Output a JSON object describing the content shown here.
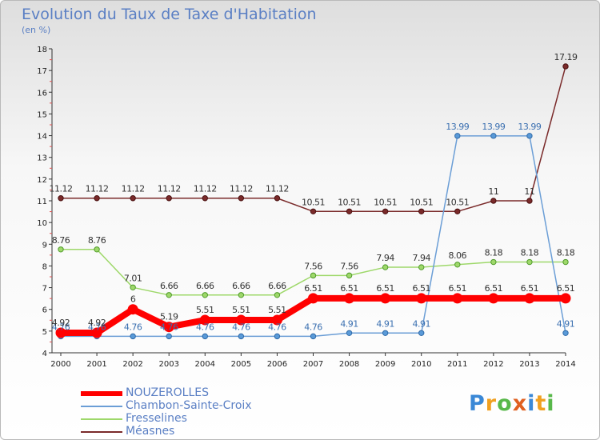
{
  "header": {
    "title": "Evolution du Taux de Taxe d'Habitation",
    "unit": "(en %)"
  },
  "brand": {
    "letters": [
      {
        "char": "P",
        "color": "#3a88d6"
      },
      {
        "char": "r",
        "color": "#f0a020"
      },
      {
        "char": "o",
        "color": "#58b84a"
      },
      {
        "char": "x",
        "color": "#e06020"
      },
      {
        "char": "i",
        "color": "#3a88d6"
      },
      {
        "char": "t",
        "color": "#f0a020"
      },
      {
        "char": "i",
        "color": "#58b84a"
      }
    ]
  },
  "chart_data": {
    "type": "line",
    "title": "Evolution du Taux de Taxe d'Habitation",
    "ylabel": "(en %)",
    "xlabel": "",
    "ylim": [
      4,
      18
    ],
    "yticks": [
      "4",
      "5",
      "6",
      "7",
      "8",
      "9",
      "10",
      "11",
      "12",
      "13",
      "14",
      "15",
      "16",
      "17",
      "18"
    ],
    "categories": [
      "2000",
      "2001",
      "2002",
      "2003",
      "2004",
      "2005",
      "2006",
      "2007",
      "2008",
      "2009",
      "2010",
      "2011",
      "2012",
      "2013",
      "2014"
    ],
    "grid": false,
    "legend_position": "bottom-left",
    "series": [
      {
        "name": "NOUZEROLLES",
        "color": "#ff0000",
        "values": [
          4.92,
          4.92,
          6,
          5.19,
          5.51,
          5.51,
          5.51,
          6.51,
          6.51,
          6.51,
          6.51,
          6.51,
          6.51,
          6.51,
          6.51
        ],
        "labels": [
          "4.92",
          "4.92",
          "6",
          "5.19",
          "5.51",
          "5.51",
          "5.51",
          "6.51",
          "6.51",
          "6.51",
          "6.51",
          "6.51",
          "6.51",
          "6.51",
          "6.51"
        ]
      },
      {
        "name": "Chambon-Sainte-Croix",
        "color": "#6b9ed6",
        "values": [
          4.76,
          4.76,
          4.76,
          4.76,
          4.76,
          4.76,
          4.76,
          4.76,
          4.91,
          4.91,
          4.91,
          13.99,
          13.99,
          13.99,
          4.91
        ],
        "labels": [
          "4.76",
          "4.76",
          "4.76",
          "4.76",
          "4.76",
          "4.76",
          "4.76",
          "4.76",
          "4.91",
          "4.91",
          "4.91",
          "13.99",
          "13.99",
          "13.99",
          "4.91"
        ]
      },
      {
        "name": "Fresselines",
        "color": "#9ed86a",
        "values": [
          8.76,
          8.76,
          7.01,
          6.66,
          6.66,
          6.66,
          6.66,
          7.56,
          7.56,
          7.94,
          7.94,
          8.06,
          8.18,
          8.18,
          8.18
        ],
        "labels": [
          "8.76",
          "8.76",
          "7.01",
          "6.66",
          "6.66",
          "6.66",
          "6.66",
          "7.56",
          "7.56",
          "7.94",
          "7.94",
          "8.06",
          "8.18",
          "8.18",
          "8.18"
        ]
      },
      {
        "name": "Méasnes",
        "color": "#7a2a2a",
        "values": [
          11.12,
          11.12,
          11.12,
          11.12,
          11.12,
          11.12,
          11.12,
          10.51,
          10.51,
          10.51,
          10.51,
          10.51,
          11,
          11,
          17.19
        ],
        "labels": [
          "11.12",
          "11.12",
          "11.12",
          "11.12",
          "11.12",
          "11.12",
          "11.12",
          "10.51",
          "10.51",
          "10.51",
          "10.51",
          "10.51",
          "11",
          "11",
          "17.19"
        ]
      }
    ]
  }
}
